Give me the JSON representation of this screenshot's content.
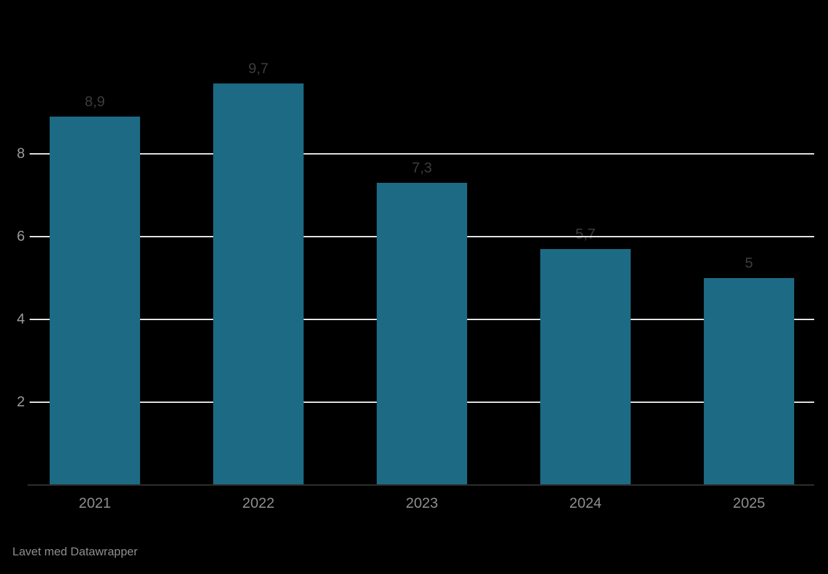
{
  "chart_data": {
    "type": "bar",
    "categories": [
      "2021",
      "2022",
      "2023",
      "2024",
      "2025"
    ],
    "values": [
      8.9,
      9.7,
      7.3,
      5.7,
      5
    ],
    "value_labels": [
      "8,9",
      "9,7",
      "7,3",
      "5,7",
      "5"
    ],
    "title": "",
    "xlabel": "",
    "ylabel": "",
    "y_ticks": [
      2,
      4,
      6,
      8
    ],
    "y_tick_labels": [
      "2",
      "4",
      "6",
      "8"
    ],
    "ylim": [
      0,
      10
    ],
    "grid": true,
    "legend": "none"
  },
  "colors": {
    "background": "#000000",
    "bar": "#1d6a84",
    "gridline": "#e8e8e8",
    "axis_line": "#2e2e2e",
    "y_tick_label": "#9a9a9a",
    "category_label": "#8f8f8f",
    "value_label": "#3c3c3c",
    "footer_text": "#8f8f8f"
  },
  "footer": {
    "attribution": "Lavet med Datawrapper"
  }
}
